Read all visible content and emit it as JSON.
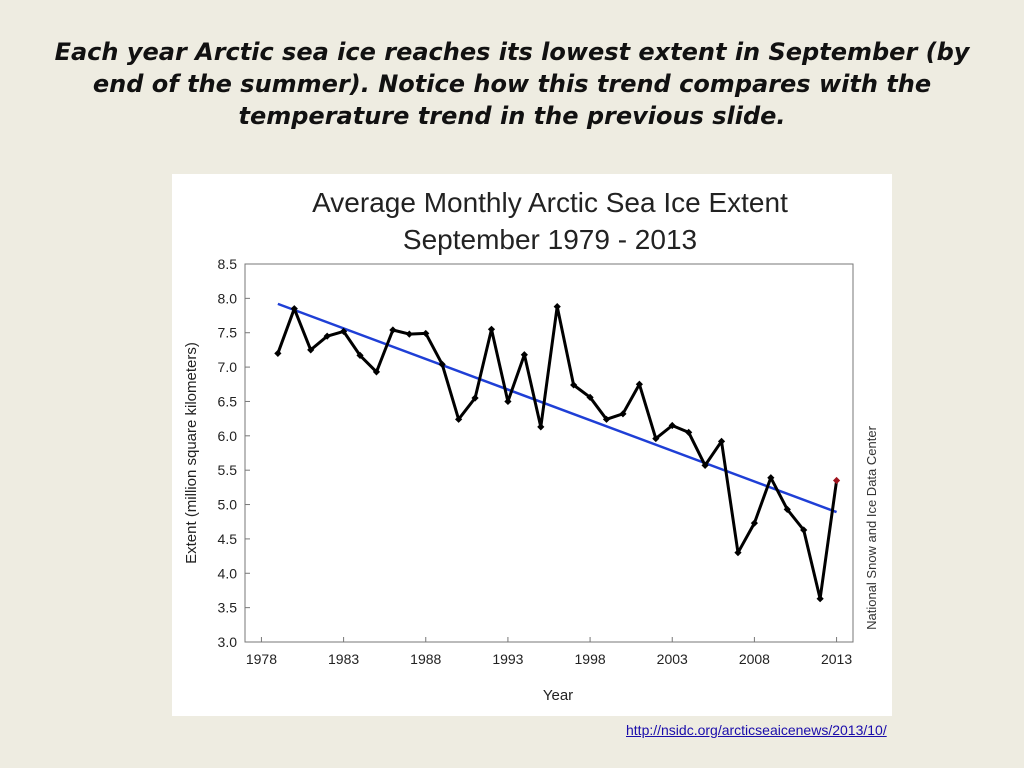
{
  "slide": {
    "title": "Each year Arctic sea ice reaches its lowest extent in September (by end of the summer). Notice how this trend compares with the temperature trend in the previous slide.",
    "source_link": "http://nsidc.org/arcticseaicenews/2013/10/"
  },
  "chart_data": {
    "type": "line",
    "title": "Average Monthly Arctic Sea Ice Extent",
    "subtitle": "September 1979 - 2013",
    "xlabel": "Year",
    "ylabel": "Extent (million square kilometers)",
    "credit": "National Snow and Ice Data Center",
    "xlim": [
      1977,
      2014
    ],
    "ylim": [
      3.0,
      8.5
    ],
    "x_ticks": [
      1978,
      1983,
      1988,
      1993,
      1998,
      2003,
      2008,
      2013
    ],
    "y_ticks": [
      "3.0",
      "3.5",
      "4.0",
      "4.5",
      "5.0",
      "5.5",
      "6.0",
      "6.5",
      "7.0",
      "7.5",
      "8.0",
      "8.5"
    ],
    "grid": false,
    "series": [
      {
        "values_x": [
          1979,
          1980,
          1981,
          1982,
          1983,
          1984,
          1985,
          1986,
          1987,
          1988,
          1989,
          1990,
          1991,
          1992,
          1993,
          1994,
          1995,
          1996,
          1997,
          1998,
          1999,
          2000,
          2001,
          2002,
          2003,
          2004,
          2005,
          2006,
          2007,
          2008,
          2009,
          2010,
          2011,
          2012,
          2013
        ],
        "values_y": [
          7.2,
          7.85,
          7.25,
          7.45,
          7.52,
          7.17,
          6.93,
          7.54,
          7.48,
          7.49,
          7.04,
          6.24,
          6.55,
          7.55,
          6.5,
          7.18,
          6.13,
          7.88,
          6.74,
          6.56,
          6.24,
          6.32,
          6.75,
          5.96,
          6.15,
          6.05,
          5.57,
          5.92,
          4.3,
          4.73,
          5.39,
          4.93,
          4.63,
          3.63,
          5.35
        ],
        "color": "#000000",
        "highlight_last_color": "#a0141e"
      }
    ],
    "trend": {
      "x": [
        1979,
        2013
      ],
      "y": [
        7.92,
        4.89
      ],
      "color": "#1f3fd6"
    }
  }
}
